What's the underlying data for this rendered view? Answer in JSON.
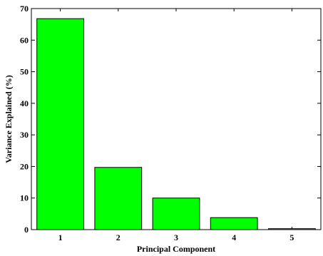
{
  "chart_data": {
    "type": "bar",
    "title": "",
    "xlabel": "Principal Component",
    "ylabel": "Variance Explained (%)",
    "categories": [
      "1",
      "2",
      "3",
      "4",
      "5"
    ],
    "values": [
      66.8,
      19.7,
      10.0,
      3.8,
      0.3
    ],
    "ylim": [
      0,
      70
    ],
    "yticks": [
      0,
      10,
      20,
      30,
      40,
      50,
      60,
      70
    ],
    "grid": false,
    "legend": "none",
    "bar_color": "#00ff00",
    "edge_color": "#000000"
  }
}
